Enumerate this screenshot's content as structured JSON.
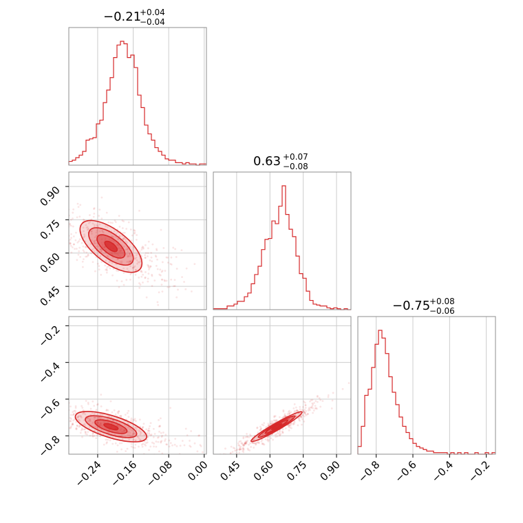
{
  "chart_data": {
    "type": "corner",
    "color": "#d62728",
    "grid": true,
    "parameters": [
      {
        "title": {
          "median": "−0.21",
          "plus": "+0.04",
          "minus": "−0.04"
        },
        "range": [
          -0.305,
          0.005
        ],
        "ticks": [
          {
            "value": -0.24,
            "label": "−0.24"
          },
          {
            "value": -0.16,
            "label": "−0.16"
          },
          {
            "value": -0.08,
            "label": "−0.08"
          },
          {
            "value": 0.0,
            "label": "0.00"
          }
        ],
        "histogram": {
          "start": -0.305,
          "bin_width": 0.00775,
          "counts": [
            3,
            4,
            6,
            8,
            11,
            20,
            21,
            22,
            33,
            36,
            50,
            60,
            70,
            86,
            96,
            99,
            97,
            86,
            88,
            78,
            56,
            46,
            32,
            25,
            20,
            14,
            11,
            8,
            5,
            4,
            4,
            2,
            2,
            1,
            2,
            1,
            1,
            0,
            1,
            1
          ]
        }
      },
      {
        "title": {
          "median": "0.63",
          "plus": "+0.07",
          "minus": "−0.08"
        },
        "range": [
          0.345,
          0.965
        ],
        "ticks": [
          {
            "value": 0.45,
            "label": "0.45"
          },
          {
            "value": 0.6,
            "label": "0.60"
          },
          {
            "value": 0.75,
            "label": "0.75"
          },
          {
            "value": 0.9,
            "label": "0.90"
          }
        ],
        "histogram": {
          "start": 0.345,
          "bin_width": 0.0155,
          "counts": [
            1,
            1,
            1,
            1,
            4,
            4,
            6,
            9,
            9,
            14,
            18,
            28,
            38,
            47,
            65,
            76,
            77,
            96,
            93,
            112,
            134,
            103,
            87,
            79,
            58,
            39,
            34,
            20,
            10,
            6,
            5,
            4,
            4,
            2,
            1,
            2,
            1,
            0,
            1,
            0
          ]
        }
      },
      {
        "title": {
          "median": "−0.75",
          "plus": "+0.08",
          "minus": "−0.06"
        },
        "range": [
          -0.9,
          -0.15
        ],
        "ticks": [
          {
            "value": -0.8,
            "label": "−0.8"
          },
          {
            "value": -0.6,
            "label": "−0.6"
          },
          {
            "value": -0.4,
            "label": "−0.4"
          },
          {
            "value": -0.2,
            "label": "−0.2"
          }
        ],
        "ticks_left": [
          {
            "value": -0.8,
            "label": "−0.8"
          },
          {
            "value": -0.6,
            "label": "−0.6"
          },
          {
            "value": -0.4,
            "label": "−0.4"
          },
          {
            "value": -0.2,
            "label": "−0.2"
          }
        ],
        "histogram": {
          "start": -0.9,
          "bin_width": 0.01875,
          "counts": [
            5,
            18,
            38,
            42,
            56,
            71,
            80,
            75,
            65,
            50,
            40,
            32,
            24,
            18,
            14,
            10,
            7,
            5,
            4,
            3,
            2,
            2,
            1,
            1,
            1,
            1,
            0,
            1,
            0,
            1,
            0,
            1,
            0,
            0,
            1,
            0,
            0,
            1,
            0,
            1
          ]
        }
      }
    ],
    "pairs": [
      {
        "name": "p1-vs-p0",
        "x_param": 0,
        "y_param": 1,
        "center": [
          -0.21,
          0.63
        ],
        "direction": [
          -0.55,
          0.84
        ],
        "spread": 0.035,
        "length": 0.12
      },
      {
        "name": "p2-vs-p0",
        "x_param": 0,
        "y_param": 2,
        "center": [
          -0.21,
          -0.75
        ],
        "direction": [
          -0.8,
          0.6
        ],
        "spread": 0.03,
        "length": 0.1
      },
      {
        "name": "p2-vs-p1",
        "x_param": 1,
        "y_param": 2,
        "center": [
          0.63,
          -0.75
        ],
        "direction": [
          0.82,
          0.57
        ],
        "spread": 0.015,
        "length": 0.14
      }
    ]
  }
}
